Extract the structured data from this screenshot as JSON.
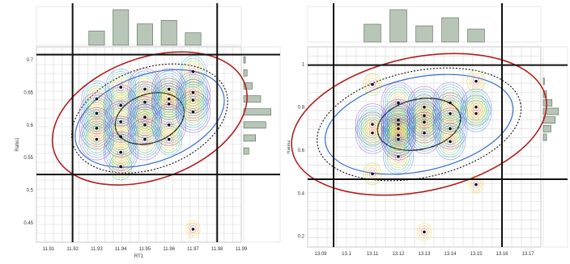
{
  "chart_data": [
    {
      "type": "scatter",
      "subtype": "scatter with 2D density contours and marginal histograms",
      "xlabel": "RT1",
      "ylabel": "Ratio1",
      "xlim": [
        11.905,
        11.99
      ],
      "ylim": [
        0.42,
        0.72
      ],
      "x_ticks": [
        "11.91",
        "11.92",
        "11.93",
        "11.94",
        "11.95",
        "11.96",
        "11.97",
        "11.98",
        "11.99"
      ],
      "y_ticks": [
        "0.45",
        "0.5",
        "0.55",
        "0.6",
        "0.65",
        "0.7"
      ],
      "threshold_lines": {
        "x": [
          11.92,
          11.98
        ],
        "y": [
          0.524,
          0.708
        ]
      },
      "points": [
        {
          "x": 11.93,
          "y": 0.64
        },
        {
          "x": 11.93,
          "y": 0.618
        },
        {
          "x": 11.93,
          "y": 0.595
        },
        {
          "x": 11.93,
          "y": 0.578
        },
        {
          "x": 11.94,
          "y": 0.658
        },
        {
          "x": 11.94,
          "y": 0.63
        },
        {
          "x": 11.94,
          "y": 0.605
        },
        {
          "x": 11.94,
          "y": 0.582
        },
        {
          "x": 11.94,
          "y": 0.558
        },
        {
          "x": 11.94,
          "y": 0.536
        },
        {
          "x": 11.95,
          "y": 0.655
        },
        {
          "x": 11.95,
          "y": 0.635
        },
        {
          "x": 11.95,
          "y": 0.612
        },
        {
          "x": 11.95,
          "y": 0.6
        },
        {
          "x": 11.95,
          "y": 0.578
        },
        {
          "x": 11.96,
          "y": 0.655
        },
        {
          "x": 11.96,
          "y": 0.64
        },
        {
          "x": 11.96,
          "y": 0.632
        },
        {
          "x": 11.96,
          "y": 0.6
        },
        {
          "x": 11.96,
          "y": 0.578
        },
        {
          "x": 11.97,
          "y": 0.682
        },
        {
          "x": 11.97,
          "y": 0.65
        },
        {
          "x": 11.97,
          "y": 0.638
        },
        {
          "x": 11.97,
          "y": 0.62
        },
        {
          "x": 11.97,
          "y": 0.44
        }
      ],
      "top_histogram": [
        {
          "x": 11.93,
          "height": 0.4
        },
        {
          "x": 11.94,
          "height": 1.0
        },
        {
          "x": 11.95,
          "height": 0.6
        },
        {
          "x": 11.96,
          "height": 0.7
        },
        {
          "x": 11.97,
          "height": 0.35
        }
      ],
      "right_histogram": [
        {
          "y": 0.7,
          "width": 0.05
        },
        {
          "y": 0.68,
          "width": 0.1
        },
        {
          "y": 0.66,
          "width": 0.25
        },
        {
          "y": 0.64,
          "width": 0.5
        },
        {
          "y": 0.62,
          "width": 0.8
        },
        {
          "y": 0.6,
          "width": 0.65
        },
        {
          "y": 0.58,
          "width": 0.35
        },
        {
          "y": 0.56,
          "width": 0.15
        }
      ],
      "colors": {
        "threshold": "#111111",
        "outer_ellipse": "#b02020",
        "ellipse_blue": "#3a6fd0",
        "ellipse_black": "#111111",
        "histogram_bar": "#b7c6b7",
        "histogram_edge": "#556655",
        "grid": "#d8d8d8"
      }
    },
    {
      "type": "scatter",
      "subtype": "scatter with 2D density contours and marginal histograms",
      "xlabel": "",
      "ylabel": "Ratio2",
      "xlim": [
        13.085,
        13.175
      ],
      "ylim": [
        0.15,
        1.08
      ],
      "x_ticks": [
        "13.09",
        "13.1",
        "13.11",
        "13.12",
        "13.13",
        "13.14",
        "13.15",
        "13.16",
        "13.17"
      ],
      "y_ticks": [
        "0.2",
        "0.4",
        "0.6",
        "0.8",
        "1"
      ],
      "threshold_lines": {
        "x": [
          13.095,
          13.16
        ],
        "y": [
          0.465,
          0.995
        ]
      },
      "points": [
        {
          "x": 13.11,
          "y": 0.905
        },
        {
          "x": 13.11,
          "y": 0.72
        },
        {
          "x": 13.11,
          "y": 0.68
        },
        {
          "x": 13.11,
          "y": 0.49
        },
        {
          "x": 13.12,
          "y": 0.82
        },
        {
          "x": 13.12,
          "y": 0.74
        },
        {
          "x": 13.12,
          "y": 0.72
        },
        {
          "x": 13.12,
          "y": 0.7
        },
        {
          "x": 13.12,
          "y": 0.67
        },
        {
          "x": 13.12,
          "y": 0.65
        },
        {
          "x": 13.12,
          "y": 0.57
        },
        {
          "x": 13.13,
          "y": 0.8
        },
        {
          "x": 13.13,
          "y": 0.76
        },
        {
          "x": 13.13,
          "y": 0.73
        },
        {
          "x": 13.13,
          "y": 0.68
        },
        {
          "x": 13.14,
          "y": 0.82
        },
        {
          "x": 13.14,
          "y": 0.77
        },
        {
          "x": 13.14,
          "y": 0.7
        },
        {
          "x": 13.14,
          "y": 0.64
        },
        {
          "x": 13.15,
          "y": 0.92
        },
        {
          "x": 13.15,
          "y": 0.8
        },
        {
          "x": 13.15,
          "y": 0.77
        },
        {
          "x": 13.15,
          "y": 0.44
        },
        {
          "x": 13.13,
          "y": 0.22
        }
      ],
      "top_histogram": [
        {
          "x": 13.11,
          "height": 0.55
        },
        {
          "x": 13.12,
          "height": 1.0
        },
        {
          "x": 13.13,
          "height": 0.5
        },
        {
          "x": 13.14,
          "height": 0.75
        },
        {
          "x": 13.15,
          "height": 0.4
        }
      ],
      "right_histogram": [
        {
          "y": 0.92,
          "width": 0.05
        },
        {
          "y": 0.86,
          "width": 0.15
        },
        {
          "y": 0.82,
          "width": 0.4
        },
        {
          "y": 0.78,
          "width": 0.7
        },
        {
          "y": 0.74,
          "width": 0.55
        },
        {
          "y": 0.7,
          "width": 0.35
        },
        {
          "y": 0.66,
          "width": 0.15
        }
      ],
      "colors": {
        "threshold": "#111111",
        "outer_ellipse": "#b02020",
        "ellipse_blue": "#3a6fd0",
        "ellipse_black": "#111111",
        "histogram_bar": "#b7c6b7",
        "histogram_edge": "#556655",
        "grid": "#d8d8d8"
      }
    }
  ]
}
